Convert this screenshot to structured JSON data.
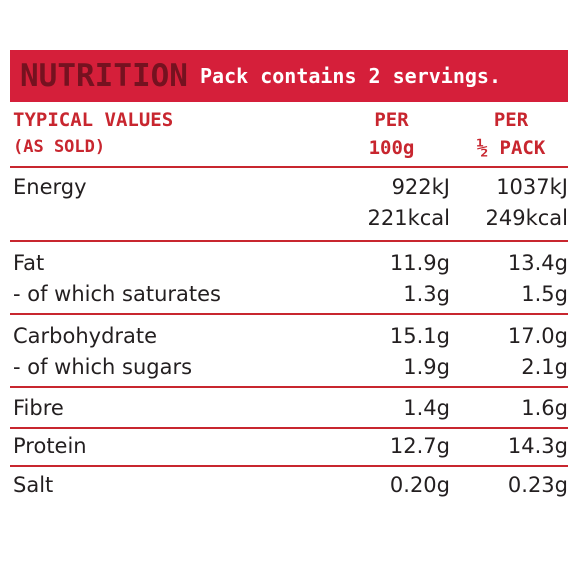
{
  "banner": {
    "title": "NUTRITION",
    "subtitle": "Pack contains 2 servings."
  },
  "header": {
    "col1_line1": "TYPICAL VALUES",
    "col1_line2": "(AS SOLD)",
    "col2_line1": "PER",
    "col2_line2": "100g",
    "col3_line1": "PER",
    "col3_line2": "½ PACK"
  },
  "rows": [
    {
      "labels": [
        "Energy",
        ""
      ],
      "per100": [
        "922kJ",
        "221kcal"
      ],
      "perHalf": [
        "1037kJ",
        "249kcal"
      ]
    },
    {
      "labels": [
        "Fat",
        "- of which saturates"
      ],
      "per100": [
        "11.9g",
        "1.3g"
      ],
      "perHalf": [
        "13.4g",
        "1.5g"
      ]
    },
    {
      "labels": [
        "Carbohydrate",
        "- of which sugars"
      ],
      "per100": [
        "15.1g",
        "1.9g"
      ],
      "perHalf": [
        "17.0g",
        "2.1g"
      ]
    },
    {
      "labels": [
        "Fibre"
      ],
      "per100": [
        "1.4g"
      ],
      "perHalf": [
        "1.6g"
      ]
    },
    {
      "labels": [
        "Protein"
      ],
      "per100": [
        "12.7g"
      ],
      "perHalf": [
        "14.3g"
      ]
    },
    {
      "labels": [
        "Salt"
      ],
      "per100": [
        "0.20g"
      ],
      "perHalf": [
        "0.23g"
      ]
    }
  ],
  "colors": {
    "banner_bg": "#d51f3a",
    "banner_title": "#751220",
    "accent": "#c8262f",
    "text": "#231f20"
  }
}
